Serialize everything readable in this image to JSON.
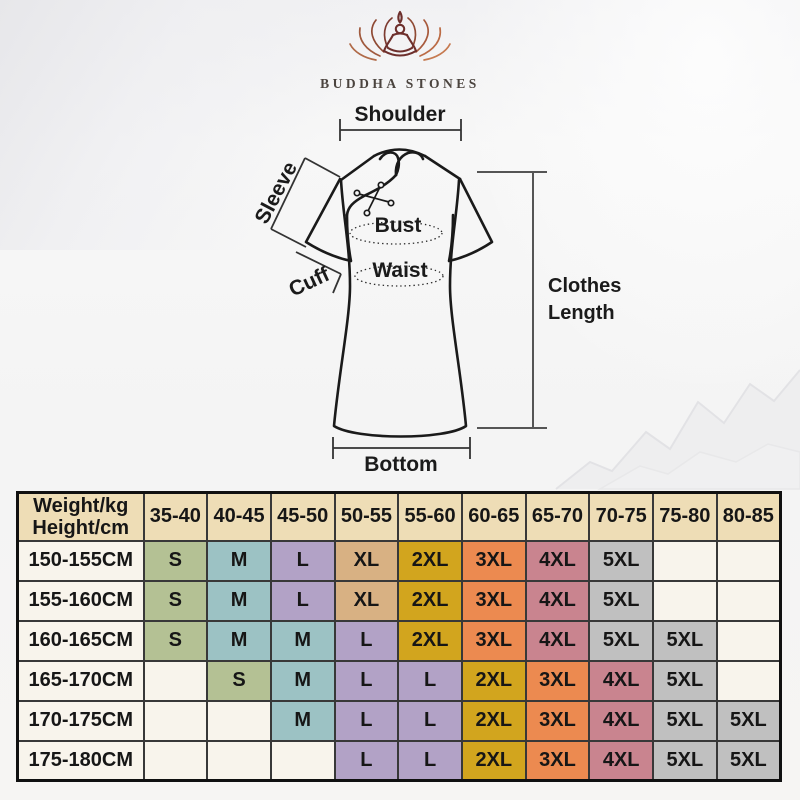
{
  "brand": {
    "name": "BUDDHA STONES"
  },
  "diagram": {
    "shoulder_label": "Shoulder",
    "sleeve_label": "Sleeve",
    "cuff_label": "Cuff",
    "bust_label": "Bust",
    "waist_label": "Waist",
    "clothes_length_line1": "Clothes",
    "clothes_length_line2": "Length",
    "bottom_label": "Bottom"
  },
  "size_table": {
    "corner_header": {
      "line1": "Weight/kg",
      "line2": "Height/cm"
    },
    "weight_columns": [
      "35-40",
      "40-45",
      "45-50",
      "50-55",
      "55-60",
      "60-65",
      "65-70",
      "70-75",
      "75-80",
      "80-85"
    ],
    "rows": [
      {
        "height": "150-155CM",
        "sizes": [
          "S",
          "M",
          "L",
          "XL",
          "2XL",
          "3XL",
          "4XL",
          "5XL",
          "",
          ""
        ]
      },
      {
        "height": "155-160CM",
        "sizes": [
          "S",
          "M",
          "L",
          "XL",
          "2XL",
          "3XL",
          "4XL",
          "5XL",
          "",
          ""
        ]
      },
      {
        "height": "160-165CM",
        "sizes": [
          "S",
          "M",
          "M",
          "L",
          "2XL",
          "3XL",
          "4XL",
          "5XL",
          "5XL",
          ""
        ]
      },
      {
        "height": "165-170CM",
        "sizes": [
          "",
          "S",
          "M",
          "L",
          "L",
          "2XL",
          "3XL",
          "4XL",
          "5XL",
          ""
        ]
      },
      {
        "height": "170-175CM",
        "sizes": [
          "",
          "",
          "M",
          "L",
          "L",
          "2XL",
          "3XL",
          "4XL",
          "5XL",
          "5XL"
        ]
      },
      {
        "height": "175-180CM",
        "sizes": [
          "",
          "",
          "",
          "L",
          "L",
          "2XL",
          "3XL",
          "4XL",
          "5XL",
          "5XL"
        ]
      }
    ],
    "size_colors": {
      "S": "#b4c194",
      "M": "#9cc2c4",
      "L": "#b2a2c6",
      "XL": "#d8b183",
      "2XL": "#d2a51e",
      "3XL": "#ec8a50",
      "4XL": "#c9848f",
      "5XL": "#c0c0c0"
    },
    "empty_cell_color": "#f8f4ec",
    "header_bg": "#eeddb6",
    "row_label_bg": "#f8f4ec"
  }
}
